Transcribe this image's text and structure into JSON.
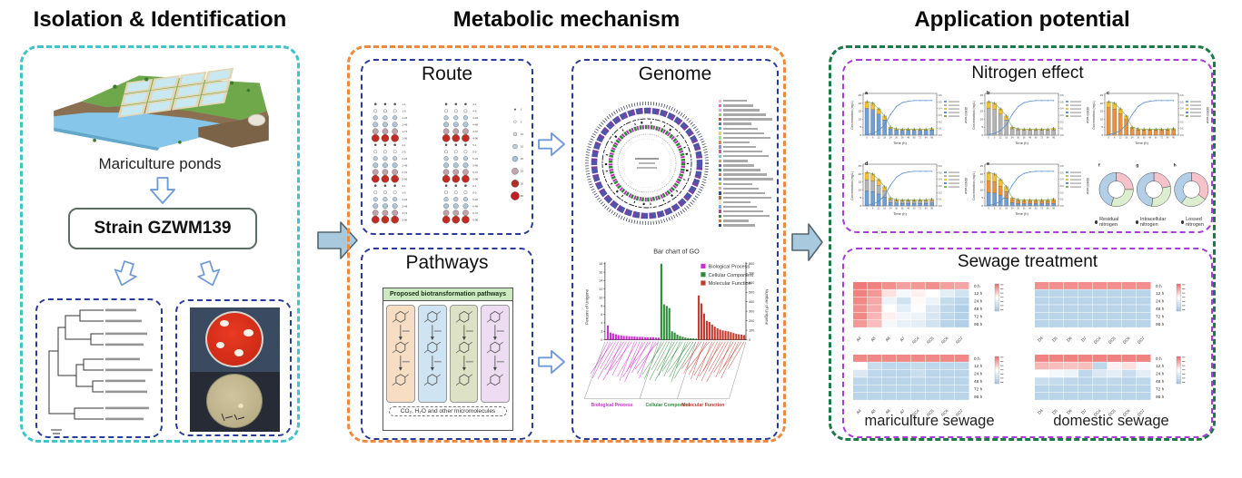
{
  "left": {
    "title": "Isolation & Identification",
    "ponds_label": "Mariculture ponds",
    "strain_label": "Strain GZWM139"
  },
  "middle": {
    "title": "Metabolic mechanism",
    "route": {
      "title": "Route",
      "series_groups": [
        [
          "1",
          "2",
          "3"
        ],
        [
          "4",
          "5",
          "6"
        ]
      ],
      "times": [
        "1",
        "5",
        "24",
        "48",
        "72",
        "96"
      ],
      "size_cycle": [
        1.2,
        1.8,
        2.4,
        2.8,
        3.2,
        4.2
      ],
      "color_cycle": [
        "#555555",
        "#ffffff",
        "#b9cfdf",
        "#aec6d8",
        "#c0a2aa",
        "#c22a22"
      ],
      "legend_labels": [
        "1",
        "5",
        "10",
        "15",
        "20",
        "25",
        "30",
        "35"
      ],
      "legend_colors": [
        "#555555",
        "#ffffff",
        "#d8e4ec",
        "#b9cfdf",
        "#a8c2d6",
        "#c2a4ac",
        "#b03028",
        "#c22020"
      ]
    },
    "pathways": {
      "title": "Pathways",
      "fig_title": "Proposed biotransformation pathways",
      "fig_footer": "CO₂, H₂O and other micromolecules",
      "column_colors": [
        "#f6ddc3",
        "#cfe4f2",
        "#dde2c6",
        "#eedcf2"
      ]
    },
    "genome": {
      "title": "Genome",
      "legend_colors": [
        "#f4b8d0",
        "#e667ac",
        "#d9a6e0",
        "#94c973",
        "#c94f44",
        "#5b6fc0",
        "#57b8b2",
        "#d9d867",
        "#a7d98a",
        "#e08a4a",
        "#8a8ad8",
        "#d45a90",
        "#6cc7c7",
        "#c7a84a",
        "#7a52b0",
        "#2f8a62",
        "#c97070",
        "#5a8ae0",
        "#9cc74f",
        "#e0a8a8",
        "#31489f",
        "#a87030",
        "#e8e8a8",
        "#70a8e8",
        "#b0489a",
        "#4a7a4a",
        "#d87a32",
        "#324a7a"
      ]
    },
    "go_chart": {
      "type": "bar",
      "title": "Bar chart of GO",
      "legend": [
        "Biological Process",
        "Cellular Component",
        "Molecular Function"
      ],
      "colors": [
        "#cc2fd0",
        "#2e8b3a",
        "#c23b2e"
      ],
      "ylabel_left": "Percent of Unigene",
      "ylabel_right": "Number of Unigene",
      "ylim": [
        0,
        18
      ],
      "ylim_right": [
        0,
        800
      ],
      "series": [
        {
          "name": "Biological Process",
          "values": [
            3.4,
            1.7,
            1.5,
            1.3,
            1.1,
            1.0,
            0.9,
            0.9,
            0.8,
            0.8,
            0.8,
            0.7,
            0.7,
            0.7,
            0.6,
            0.6,
            0.6,
            0.6,
            0.5,
            0.5
          ]
        },
        {
          "name": "Cellular Component",
          "values": [
            18,
            8.4,
            8.0,
            7.5,
            2.0,
            1.7,
            1.2,
            0.9,
            0.7,
            0.5,
            0.4,
            0.35,
            0.3,
            0.25
          ]
        },
        {
          "name": "Molecular Function",
          "values": [
            10.5,
            8.6,
            6.2,
            4.5,
            4.2,
            3.6,
            3.1,
            2.7,
            2.4,
            2.2,
            2.1,
            2.0,
            1.8,
            1.6,
            1.4,
            1.3,
            1.2,
            1.1
          ]
        }
      ]
    }
  },
  "right": {
    "title": "Application potential",
    "nitrogen": {
      "title": "Nitrogen effect",
      "letters": [
        "a",
        "b",
        "c",
        "d",
        "e"
      ],
      "xlabel": "Time (h)",
      "ylabel": "Concentrations (mg/L)",
      "ylabel_right": "OD600 value",
      "ylim": [
        0,
        25
      ],
      "yticks": [
        0,
        5,
        10,
        15,
        20,
        25
      ],
      "right_ticks": [
        "0.0",
        "0.1",
        "0.2",
        "0.3",
        "0.4",
        "0.5",
        "0.6"
      ],
      "x": [
        "0",
        "6",
        "12",
        "18",
        "24",
        "30",
        "36",
        "48",
        "60",
        "72",
        "84",
        "96"
      ],
      "bar_values": [
        21,
        20,
        16.5,
        12,
        5,
        4,
        3.8,
        3.8,
        3.8,
        3.8,
        3.8,
        4.2
      ],
      "od_curve": [
        0.02,
        0.05,
        0.13,
        0.3,
        0.6,
        0.83,
        0.94,
        0.98,
        1.0,
        1.0,
        1.0,
        1.0
      ],
      "charts": [
        {
          "letter": "a",
          "segments": [
            [
              "#6f9fd4",
              0.8
            ],
            [
              "#f3c22f",
              0.2
            ]
          ]
        },
        {
          "letter": "b",
          "segments": [
            [
              "#b3b3b3",
              0.8
            ],
            [
              "#f3c22f",
              0.2
            ]
          ]
        },
        {
          "letter": "c",
          "segments": [
            [
              "#e8923e",
              0.82
            ],
            [
              "#f3c22f",
              0.18
            ]
          ]
        },
        {
          "letter": "d",
          "segments": [
            [
              "#6f9fd4",
              0.45
            ],
            [
              "#b3b3b3",
              0.33
            ],
            [
              "#f3c22f",
              0.22
            ]
          ]
        },
        {
          "letter": "e",
          "segments": [
            [
              "#6f9fd4",
              0.4
            ],
            [
              "#e8923e",
              0.35
            ],
            [
              "#f3c22f",
              0.25
            ]
          ]
        }
      ]
    },
    "donuts": {
      "letters": [
        "f",
        "g",
        "h"
      ],
      "colors": {
        "pink": "#f6c3ca",
        "green": "#ddeed0",
        "blue": "#b3cfe8"
      },
      "segments_pct": [
        [
          25,
          30,
          45
        ],
        [
          22,
          30,
          48
        ],
        [
          35,
          25,
          40
        ]
      ],
      "order": [
        "pink",
        "green",
        "blue"
      ],
      "legend": [
        "Residual nitrogen",
        "Intracellular nitrogen",
        "Lossed nitrogen"
      ]
    },
    "sewage": {
      "title": "Sewage treatment",
      "row_labels": [
        "0 h",
        "12 h",
        "24 h",
        "48 h",
        "72 h",
        "96 h"
      ],
      "col_labels_left": [
        "A4",
        "A5",
        "A6",
        "A7",
        "NC4",
        "NC5",
        "NC6",
        "NC7"
      ],
      "col_labels_right": [
        "D4",
        "D5",
        "D6",
        "D7",
        "DC4",
        "DC5",
        "DC6",
        "DC7"
      ],
      "captions": [
        "mariculture sewage",
        "domestic sewage"
      ],
      "maps": [
        {
          "id": "hm1",
          "cols": "left",
          "values": [
            [
              0.95,
              0.92,
              0.88,
              0.82,
              0.85,
              0.88,
              0.82,
              0.8
            ],
            [
              0.92,
              0.85,
              0.6,
              0.45,
              0.55,
              0.5,
              0.35,
              0.25
            ],
            [
              0.9,
              0.8,
              0.4,
              0.25,
              0.52,
              0.4,
              0.18,
              0.12
            ],
            [
              0.88,
              0.78,
              0.5,
              0.35,
              0.48,
              0.3,
              0.15,
              0.08
            ],
            [
              0.9,
              0.75,
              0.55,
              0.42,
              0.4,
              0.28,
              0.15,
              0.1
            ],
            [
              0.85,
              0.72,
              0.45,
              0.38,
              0.35,
              0.25,
              0.12,
              0.08
            ]
          ]
        },
        {
          "id": "hm2",
          "cols": "right",
          "values": [
            [
              0.88,
              0.88,
              0.88,
              0.88,
              0.88,
              0.88,
              0.88,
              0.88
            ],
            [
              0.12,
              0.12,
              0.12,
              0.12,
              0.12,
              0.12,
              0.12,
              0.12
            ],
            [
              0.12,
              0.12,
              0.12,
              0.12,
              0.12,
              0.12,
              0.12,
              0.12
            ],
            [
              0.12,
              0.12,
              0.12,
              0.12,
              0.12,
              0.12,
              0.12,
              0.12
            ],
            [
              0.12,
              0.12,
              0.12,
              0.12,
              0.12,
              0.12,
              0.12,
              0.12
            ],
            [
              0.12,
              0.12,
              0.12,
              0.12,
              0.12,
              0.12,
              0.12,
              0.12
            ]
          ]
        },
        {
          "id": "hm3",
          "cols": "left",
          "values": [
            [
              0.9,
              0.9,
              0.9,
              0.9,
              0.9,
              0.9,
              0.9,
              0.9
            ],
            [
              0.5,
              0.2,
              0.15,
              0.15,
              0.18,
              0.15,
              0.15,
              0.15
            ],
            [
              0.3,
              0.15,
              0.12,
              0.12,
              0.2,
              0.12,
              0.12,
              0.12
            ],
            [
              0.14,
              0.12,
              0.12,
              0.12,
              0.14,
              0.12,
              0.12,
              0.12
            ],
            [
              0.12,
              0.12,
              0.12,
              0.12,
              0.12,
              0.12,
              0.12,
              0.12
            ],
            [
              0.12,
              0.12,
              0.12,
              0.12,
              0.12,
              0.12,
              0.12,
              0.12
            ]
          ]
        },
        {
          "id": "hm4",
          "cols": "right",
          "values": [
            [
              0.92,
              0.92,
              0.92,
              0.92,
              0.92,
              0.92,
              0.92,
              0.92
            ],
            [
              0.75,
              0.72,
              0.7,
              0.72,
              0.15,
              0.55,
              0.6,
              0.45
            ],
            [
              0.5,
              0.45,
              0.4,
              0.15,
              0.3,
              0.35,
              0.2,
              0.35
            ],
            [
              0.2,
              0.18,
              0.15,
              0.12,
              0.15,
              0.15,
              0.12,
              0.15
            ],
            [
              0.12,
              0.12,
              0.12,
              0.12,
              0.12,
              0.12,
              0.12,
              0.12
            ],
            [
              0.12,
              0.12,
              0.12,
              0.12,
              0.12,
              0.12,
              0.12,
              0.12
            ]
          ]
        }
      ]
    }
  }
}
